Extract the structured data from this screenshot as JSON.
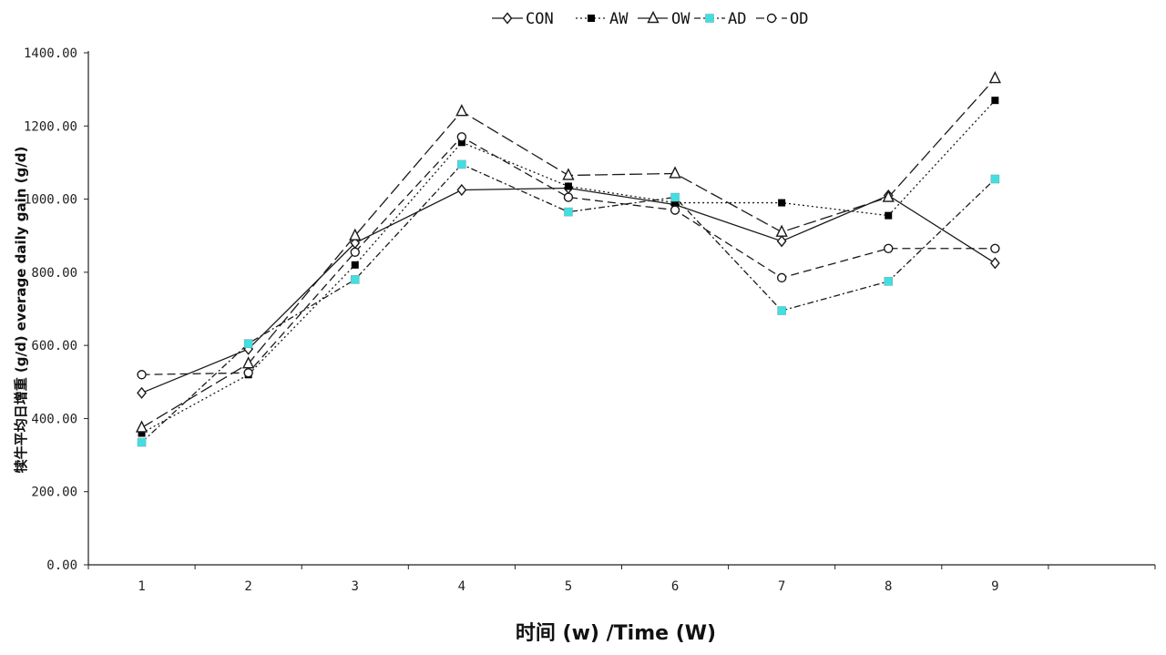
{
  "chart_data": {
    "type": "line",
    "title": "",
    "xlabel": "时间 (w) /Time (W)",
    "ylabel": "犊牛平均日增重 (g/d) everage daily gain (g/d)",
    "x": [
      1,
      2,
      3,
      4,
      5,
      6,
      7,
      8,
      9
    ],
    "x_ticks": [
      "1",
      "2",
      "3",
      "4",
      "5",
      "6",
      "7",
      "8",
      "9"
    ],
    "xlim": [
      0.5,
      10.5
    ],
    "ylim": [
      0,
      1400
    ],
    "y_ticks": [
      "0.00",
      "200.00",
      "400.00",
      "600.00",
      "800.00",
      "1000.00",
      "1200.00",
      "1400.00"
    ],
    "grid": false,
    "legend_position": "top-center",
    "series": [
      {
        "name": "CON",
        "marker": "diamond-open",
        "dash": "solid",
        "values": [
          470,
          590,
          880,
          1025,
          1030,
          985,
          885,
          1010,
          825
        ]
      },
      {
        "name": "AW",
        "marker": "square-filled",
        "dash": "dot",
        "values": [
          360,
          520,
          820,
          1155,
          1035,
          990,
          990,
          955,
          1270
        ]
      },
      {
        "name": "OW",
        "marker": "triangle-open",
        "dash": "long-dash",
        "values": [
          375,
          550,
          900,
          1240,
          1065,
          1070,
          910,
          1005,
          1330
        ]
      },
      {
        "name": "AD",
        "marker": "square-cyan",
        "dash": "dash-dot",
        "values": [
          335,
          605,
          780,
          1095,
          965,
          1005,
          695,
          775,
          1055
        ]
      },
      {
        "name": "OD",
        "marker": "circle-open",
        "dash": "dash",
        "values": [
          520,
          525,
          855,
          1170,
          1005,
          970,
          785,
          865,
          865
        ]
      }
    ],
    "colors": {
      "line": "#1a1a1a",
      "ad_marker": "#40e0e0",
      "axis": "#222222"
    }
  }
}
